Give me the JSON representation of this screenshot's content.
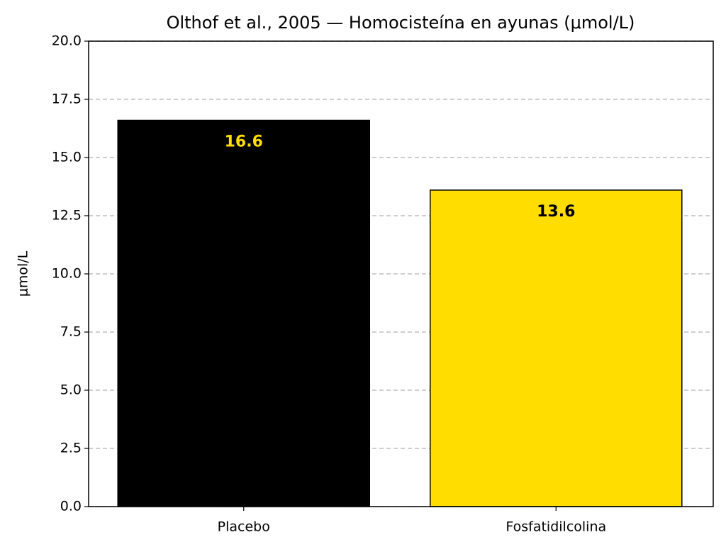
{
  "chart_data": {
    "type": "bar",
    "title": "Olthof et al., 2005 — Homocisteína en ayunas (μmol/L)",
    "ylabel": "μmol/L",
    "categories": [
      "Placebo",
      "Fosfatidilcolina"
    ],
    "values": [
      16.6,
      13.6
    ],
    "colors": [
      "#000000",
      "#ffdd00"
    ],
    "label_colors": [
      "#ffdd00",
      "#000000"
    ],
    "ylim": [
      0,
      20
    ],
    "yticks": [
      {
        "value": 0,
        "label": "0.0"
      },
      2.5,
      {
        "value": 5,
        "label": "5.0"
      },
      7.5,
      {
        "value": 10,
        "label": "10.0"
      },
      12.5,
      {
        "value": 15,
        "label": "15.0"
      },
      17.5,
      {
        "value": 20,
        "label": "20.0"
      }
    ],
    "grid": true
  }
}
